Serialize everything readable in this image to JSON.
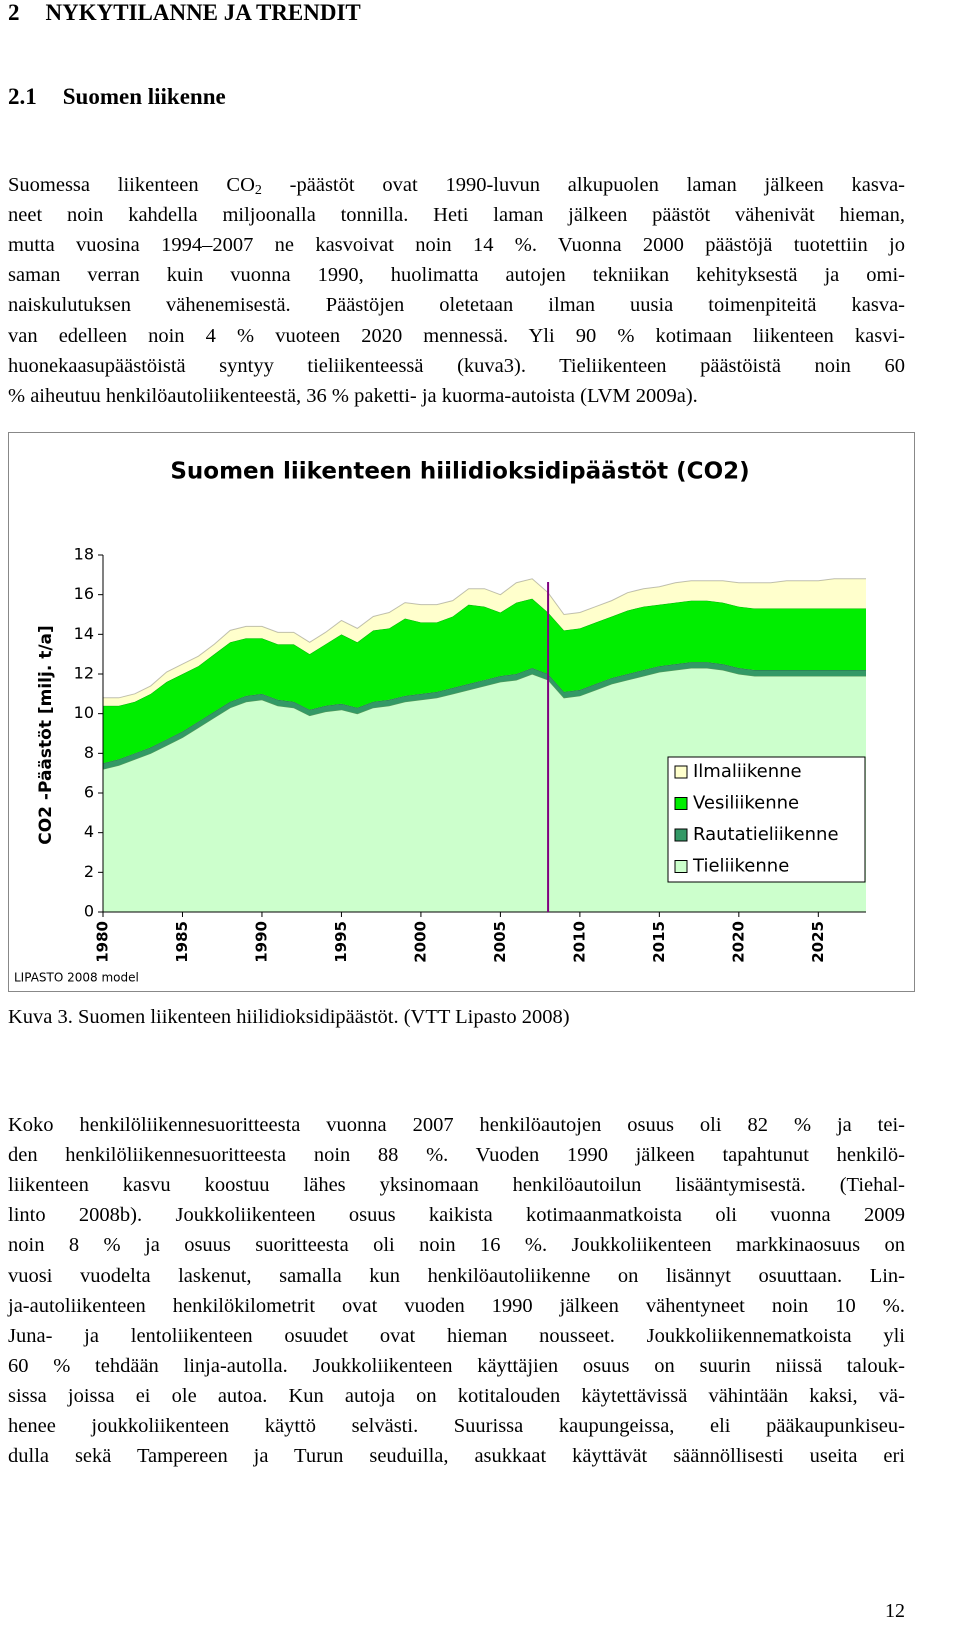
{
  "heading": {
    "number": "2",
    "text": "NYKYTILANNE JA TRENDIT"
  },
  "subheading": {
    "number": "2.1",
    "text": "Suomen liikenne"
  },
  "paragraphs": [
    [
      [
        "Suomessa liikenteen CO",
        "2",
        " -päästöt ovat 1990-luvun alkupuolen laman jälkeen kasva-"
      ],
      "neet noin kahdella miljoonalla tonnilla. Heti laman jälkeen päästöt vähenivät hieman,",
      "mutta vuosina 1994–2007 ne kasvoivat noin 14 %. Vuonna 2000 päästöjä tuotettiin jo",
      "saman verran kuin vuonna 1990, huolimatta autojen tekniikan kehityksestä ja omi-",
      "naiskulutuksen vähenemisestä. Päästöjen oletetaan ilman uusia toimenpiteitä kasva-",
      "van edelleen noin 4 % vuoteen 2020 mennessä. Yli 90 % kotimaan liikenteen kasvi-",
      "huonekaasupäästöistä syntyy tieliikenteessä (kuva3). Tieliikenteen päästöistä noin 60",
      "% aiheutuu henkilöautoliikenteestä, 36 % paketti- ja kuorma-autoista (LVM 2009a)."
    ],
    [
      "Koko henkilöliikennesuoritteesta vuonna 2007 henkilöautojen osuus oli 82 % ja tei-",
      "den henkilöliikennesuoritteesta noin 88 %. Vuoden 1990 jälkeen tapahtunut henkilö-",
      "liikenteen kasvu koostuu lähes yksinomaan henkilöautoilun lisääntymisestä. (Tiehal-",
      "linto 2008b). Joukkoliikenteen osuus kaikista kotimaanmatkoista oli vuonna 2009",
      "noin 8 % ja osuus suoritteesta oli noin 16 %. Joukkoliikenteen markkinaosuus on",
      "vuosi vuodelta laskenut, samalla kun henkilöautoliikenne on lisännyt osuuttaan. Lin-",
      "ja-autoliikenteen henkilökilometrit ovat vuoden 1990 jälkeen vähentyneet noin 10 %.",
      "Juna- ja lentoliikenteen osuudet ovat hieman nousseet. Joukkoliikennematkoista yli",
      "60 % tehdään linja-autolla. Joukkoliikenteen käyttäjien osuus on suurin niissä talouk-",
      "sissa joissa ei ole autoa. Kun autoja on kotitalouden käytettävissä vähintään kaksi, vä-",
      "henee joukkoliikenteen käyttö selvästi. Suurissa kaupungeissa, eli pääkaupunkiseu-",
      "dulla sekä Tampereen ja Turun seuduilla, asukkaat käyttävät säännöllisesti useita eri"
    ]
  ],
  "chart_data": {
    "type": "area",
    "stacked": true,
    "title": "Suomen liikenteen hiilidioksidipäästöt (CO2)",
    "y_label": "CO2 -Päästöt [milj. t/a]",
    "note": "LIPASTO 2008 model",
    "x": [
      1980,
      1981,
      1982,
      1983,
      1984,
      1985,
      1986,
      1987,
      1988,
      1989,
      1990,
      1991,
      1992,
      1993,
      1994,
      1995,
      1996,
      1997,
      1998,
      1999,
      2000,
      2001,
      2002,
      2003,
      2004,
      2005,
      2006,
      2007,
      2008,
      2009,
      2010,
      2011,
      2012,
      2013,
      2014,
      2015,
      2016,
      2017,
      2018,
      2019,
      2020,
      2021,
      2022,
      2023,
      2024,
      2025,
      2026,
      2027,
      2028
    ],
    "xlim": [
      1980,
      2028
    ],
    "xticks": [
      1980,
      1985,
      1990,
      1995,
      2000,
      2005,
      2010,
      2015,
      2020,
      2025
    ],
    "ylim": [
      0,
      18
    ],
    "yticks": [
      0,
      2,
      4,
      6,
      8,
      10,
      12,
      14,
      16,
      18
    ],
    "vline": {
      "x": 2008,
      "color": "#800080"
    },
    "series": [
      {
        "name": "Tieliikenne",
        "color": "#ccffcc",
        "values": [
          7.2,
          7.4,
          7.7,
          8.0,
          8.4,
          8.8,
          9.3,
          9.8,
          10.3,
          10.6,
          10.7,
          10.4,
          10.3,
          9.9,
          10.1,
          10.2,
          10.0,
          10.3,
          10.4,
          10.6,
          10.7,
          10.8,
          11.0,
          11.2,
          11.4,
          11.6,
          11.7,
          12.0,
          11.7,
          10.8,
          10.9,
          11.2,
          11.5,
          11.7,
          11.9,
          12.1,
          12.2,
          12.3,
          12.3,
          12.2,
          12.0,
          11.9,
          11.9,
          11.9,
          11.9,
          11.9,
          11.9,
          11.9,
          11.9
        ]
      },
      {
        "name": "Rautatieliikenne",
        "color": "#339966",
        "values": [
          0.3,
          0.3,
          0.3,
          0.3,
          0.3,
          0.3,
          0.3,
          0.3,
          0.3,
          0.3,
          0.3,
          0.3,
          0.3,
          0.3,
          0.3,
          0.3,
          0.3,
          0.3,
          0.3,
          0.3,
          0.3,
          0.3,
          0.3,
          0.3,
          0.3,
          0.3,
          0.3,
          0.3,
          0.3,
          0.3,
          0.3,
          0.3,
          0.3,
          0.3,
          0.3,
          0.3,
          0.3,
          0.3,
          0.3,
          0.3,
          0.3,
          0.3,
          0.3,
          0.3,
          0.3,
          0.3,
          0.3,
          0.3,
          0.3
        ]
      },
      {
        "name": "Vesiliikenne",
        "color": "#00ee00",
        "values": [
          2.9,
          2.7,
          2.6,
          2.7,
          2.9,
          2.9,
          2.8,
          2.9,
          3.0,
          2.9,
          2.8,
          2.8,
          2.9,
          2.8,
          3.1,
          3.5,
          3.3,
          3.6,
          3.6,
          3.9,
          3.6,
          3.5,
          3.6,
          4.0,
          3.7,
          3.2,
          3.6,
          3.5,
          3.1,
          3.1,
          3.1,
          3.1,
          3.1,
          3.2,
          3.2,
          3.1,
          3.1,
          3.1,
          3.1,
          3.1,
          3.1,
          3.1,
          3.1,
          3.1,
          3.1,
          3.1,
          3.1,
          3.1,
          3.1
        ]
      },
      {
        "name": "Ilmaliikenne",
        "color": "#ffffcc",
        "values": [
          0.4,
          0.4,
          0.4,
          0.4,
          0.5,
          0.5,
          0.5,
          0.5,
          0.6,
          0.6,
          0.6,
          0.6,
          0.6,
          0.6,
          0.6,
          0.7,
          0.7,
          0.7,
          0.8,
          0.8,
          0.9,
          0.9,
          0.8,
          0.8,
          0.9,
          0.9,
          1.0,
          1.0,
          1.0,
          0.8,
          0.8,
          0.8,
          0.8,
          0.9,
          0.9,
          0.9,
          1.0,
          1.0,
          1.0,
          1.1,
          1.2,
          1.3,
          1.3,
          1.4,
          1.4,
          1.4,
          1.5,
          1.5,
          1.5
        ]
      }
    ]
  },
  "caption": "Kuva 3. Suomen liikenteen hiilidioksidipäästöt. (VTT Lipasto 2008)",
  "page_number": "12"
}
